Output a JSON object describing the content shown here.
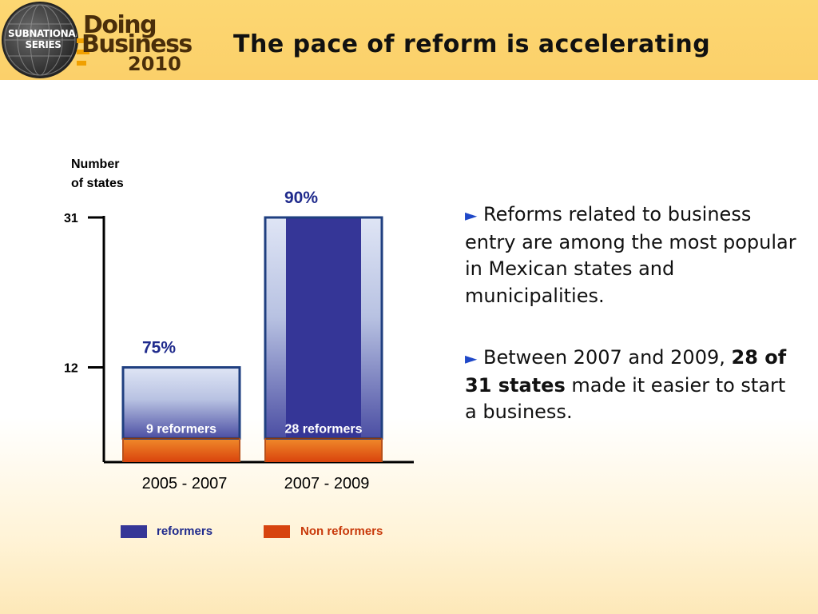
{
  "header": {
    "title": "The pace of reform is accelerating",
    "logo": {
      "series_line1": "SUBNATIONAL",
      "series_line2": "SERIES",
      "word1": "Doing",
      "word2": "Business",
      "year": "2010"
    }
  },
  "chart_data": {
    "type": "bar",
    "stacked": true,
    "ylabel": "Number of states",
    "yticks": [
      12,
      31
    ],
    "categories": [
      "2005 - 2007",
      "2007 - 2009"
    ],
    "totals": [
      12,
      31
    ],
    "series": [
      {
        "name": "reformers",
        "values": [
          9,
          28
        ],
        "labels": [
          "9 reformers",
          "28 reformers"
        ],
        "color": "#353697"
      },
      {
        "name": "Non reformers",
        "values": [
          3,
          3
        ],
        "color": "#d7440f"
      }
    ],
    "annotations": [
      "75%",
      "90%"
    ],
    "annotation_color": "#1f2a8c",
    "ylim": [
      0,
      31
    ],
    "grid": false,
    "legend": "bottom"
  },
  "bullets": {
    "marker": "►",
    "b1": "Reforms related to business entry are among the most popular in Mexican states and municipalities.",
    "b2_pre": "Between 2007 and 2009, ",
    "b2_bold": "28 of 31 states",
    "b2_post": " made it easier to start a business."
  },
  "legend": {
    "reformers_label": "reformers",
    "reformers_color": "#353697",
    "non_reformers_label": "Non reformers",
    "non_reformers_color": "#d7440f",
    "non_reformers_text_color": "#c8390a"
  }
}
